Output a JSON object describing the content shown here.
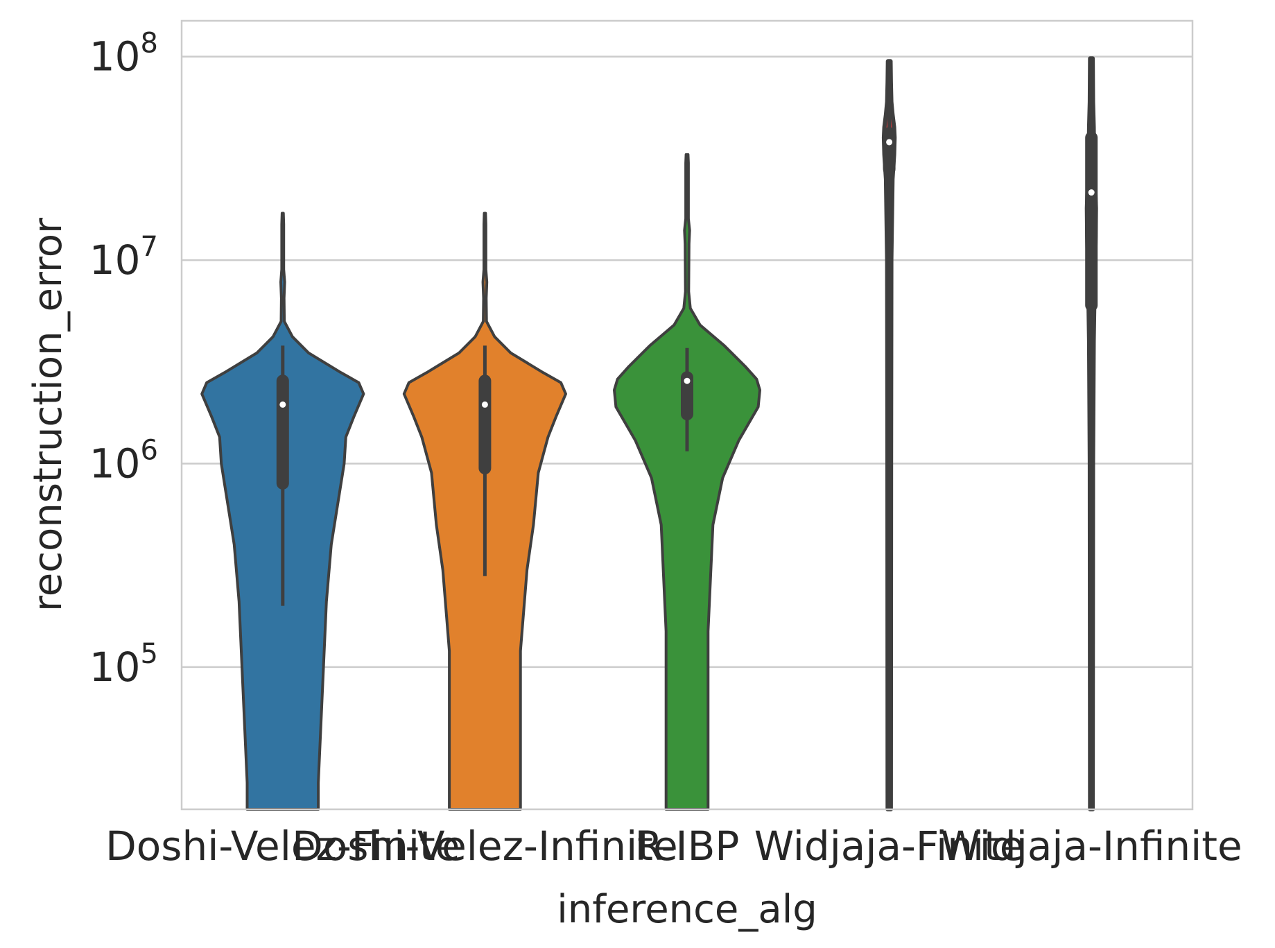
{
  "chart_data": {
    "type": "violin",
    "xlabel": "inference_alg",
    "ylabel": "reconstruction_error",
    "yscale": "log",
    "ylim": [
      20000,
      150000000
    ],
    "grid": "horizontal",
    "yticks": [
      {
        "value": 100000,
        "base": "10",
        "exp": "5"
      },
      {
        "value": 1000000,
        "base": "10",
        "exp": "6"
      },
      {
        "value": 10000000,
        "base": "10",
        "exp": "7"
      },
      {
        "value": 100000000,
        "base": "10",
        "exp": "8"
      }
    ],
    "series": [
      {
        "category": "Doshi-Velez-Finite",
        "color": "#3274a1",
        "median": 1950000,
        "q1": 800000,
        "q3": 2550000,
        "whisker_low": 200000,
        "whisker_high": 3800000,
        "profile": [
          [
            20000,
            0.22
          ],
          [
            27000,
            0.22
          ],
          [
            210000,
            0.27
          ],
          [
            400000,
            0.3
          ],
          [
            1000000,
            0.38
          ],
          [
            1350000,
            0.39
          ],
          [
            1700000,
            0.44
          ],
          [
            2200000,
            0.5
          ],
          [
            2500000,
            0.47
          ],
          [
            2800000,
            0.36
          ],
          [
            3500000,
            0.16
          ],
          [
            4200000,
            0.06
          ],
          [
            5000000,
            0.01
          ],
          [
            6500000,
            0.008
          ],
          [
            7800000,
            0.012
          ],
          [
            9000000,
            0.006
          ],
          [
            15000000,
            0.006
          ],
          [
            17000000,
            0.004
          ]
        ]
      },
      {
        "category": "Doshi-Velez-Infinite",
        "color": "#e1812c",
        "median": 1950000,
        "q1": 950000,
        "q3": 2550000,
        "whisker_low": 280000,
        "whisker_high": 3800000,
        "profile": [
          [
            20000,
            0.22
          ],
          [
            120000,
            0.22
          ],
          [
            300000,
            0.26
          ],
          [
            500000,
            0.3
          ],
          [
            900000,
            0.33
          ],
          [
            1350000,
            0.39
          ],
          [
            1700000,
            0.44
          ],
          [
            2200000,
            0.5
          ],
          [
            2500000,
            0.47
          ],
          [
            2800000,
            0.36
          ],
          [
            3500000,
            0.16
          ],
          [
            4200000,
            0.06
          ],
          [
            5000000,
            0.01
          ],
          [
            6500000,
            0.008
          ],
          [
            7800000,
            0.012
          ],
          [
            9000000,
            0.006
          ],
          [
            15000000,
            0.006
          ],
          [
            17000000,
            0.004
          ]
        ]
      },
      {
        "category": "R-IBP",
        "color": "#3a923a",
        "median": 2550000,
        "q1": 1750000,
        "q3": 2650000,
        "whisker_low": 1150000,
        "whisker_high": 3700000,
        "profile": [
          [
            20000,
            0.13
          ],
          [
            150000,
            0.13
          ],
          [
            500000,
            0.16
          ],
          [
            850000,
            0.22
          ],
          [
            1300000,
            0.32
          ],
          [
            1900000,
            0.44
          ],
          [
            2300000,
            0.45
          ],
          [
            2600000,
            0.43
          ],
          [
            3000000,
            0.36
          ],
          [
            3800000,
            0.23
          ],
          [
            4800000,
            0.08
          ],
          [
            5800000,
            0.02
          ],
          [
            7000000,
            0.01
          ],
          [
            12000000,
            0.012
          ],
          [
            14000000,
            0.016
          ],
          [
            16000000,
            0.008
          ],
          [
            30000000,
            0.008
          ],
          [
            33000000,
            0.006
          ]
        ]
      },
      {
        "category": "Widjaja-Finite",
        "color": "#c03d3e",
        "median": 38000000,
        "q1": 28000000,
        "q3": 42000000,
        "whisker_low": 20000,
        "whisker_high": 95000000,
        "profile": [
          [
            20000,
            0.01
          ],
          [
            1000000,
            0.011
          ],
          [
            10000000,
            0.013
          ],
          [
            25000000,
            0.02
          ],
          [
            33000000,
            0.03
          ],
          [
            40000000,
            0.033
          ],
          [
            45000000,
            0.03
          ],
          [
            52000000,
            0.02
          ],
          [
            60000000,
            0.013
          ],
          [
            75000000,
            0.01
          ],
          [
            95000000,
            0.008
          ]
        ]
      },
      {
        "category": "Widjaja-Infinite",
        "color": "#9372b2",
        "median": 21500000,
        "q1": 6000000,
        "q3": 40000000,
        "whisker_low": 20000,
        "whisker_high": 98000000,
        "profile": [
          [
            20000,
            0.008
          ],
          [
            1000000,
            0.01
          ],
          [
            4000000,
            0.014
          ],
          [
            8000000,
            0.02
          ],
          [
            13000000,
            0.026
          ],
          [
            18000000,
            0.028
          ],
          [
            25000000,
            0.022
          ],
          [
            35000000,
            0.016
          ],
          [
            45000000,
            0.014
          ],
          [
            60000000,
            0.01
          ],
          [
            98000000,
            0.008
          ]
        ]
      }
    ]
  }
}
